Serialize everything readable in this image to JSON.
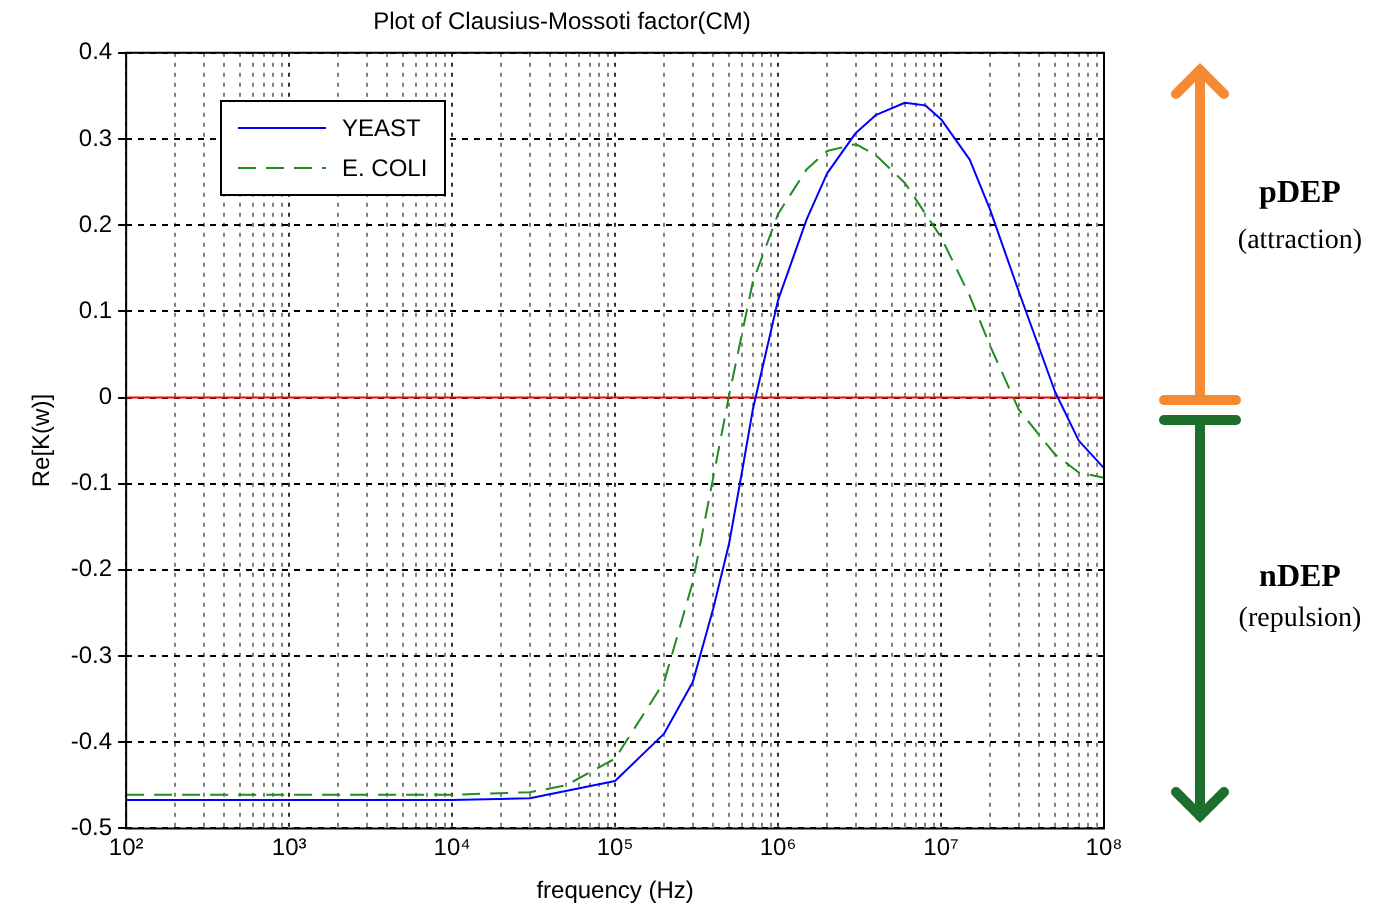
{
  "chart_data": {
    "type": "line",
    "title": "Plot of Clausius-Mossoti factor(CM)",
    "xlabel": "frequency (Hz)",
    "ylabel": "Re[K(w)]",
    "log": "x",
    "grid": true,
    "legend": "top left",
    "marker": "none",
    "xlim": [
      100,
      100000000
    ],
    "xticks": [
      {
        "value": 100,
        "label": "10²"
      },
      {
        "value": 200,
        "label": null
      },
      {
        "value": 300,
        "label": null
      },
      {
        "value": 400,
        "label": null
      },
      {
        "value": 500,
        "label": null
      },
      {
        "value": 600,
        "label": null
      },
      {
        "value": 700,
        "label": null
      },
      {
        "value": 800,
        "label": null
      },
      {
        "value": 900,
        "label": null
      },
      {
        "value": 1000,
        "label": "10³"
      },
      {
        "value": 2000,
        "label": null
      },
      {
        "value": 3000,
        "label": null
      },
      {
        "value": 4000,
        "label": null
      },
      {
        "value": 5000,
        "label": null
      },
      {
        "value": 6000,
        "label": null
      },
      {
        "value": 7000,
        "label": null
      },
      {
        "value": 8000,
        "label": null
      },
      {
        "value": 9000,
        "label": null
      },
      {
        "value": 10000,
        "label": "10⁴"
      },
      {
        "value": 20000,
        "label": null
      },
      {
        "value": 30000,
        "label": null
      },
      {
        "value": 40000,
        "label": null
      },
      {
        "value": 50000,
        "label": null
      },
      {
        "value": 60000,
        "label": null
      },
      {
        "value": 70000,
        "label": null
      },
      {
        "value": 80000,
        "label": null
      },
      {
        "value": 90000,
        "label": null
      },
      {
        "value": 100000,
        "label": "10⁵"
      },
      {
        "value": 200000,
        "label": null
      },
      {
        "value": 300000,
        "label": null
      },
      {
        "value": 400000,
        "label": null
      },
      {
        "value": 500000,
        "label": null
      },
      {
        "value": 600000,
        "label": null
      },
      {
        "value": 700000,
        "label": null
      },
      {
        "value": 800000,
        "label": null
      },
      {
        "value": 900000,
        "label": null
      },
      {
        "value": 1000000,
        "label": "10⁶"
      },
      {
        "value": 2000000,
        "label": null
      },
      {
        "value": 3000000,
        "label": null
      },
      {
        "value": 4000000,
        "label": null
      },
      {
        "value": 5000000,
        "label": null
      },
      {
        "value": 6000000,
        "label": null
      },
      {
        "value": 7000000,
        "label": null
      },
      {
        "value": 8000000,
        "label": null
      },
      {
        "value": 9000000,
        "label": null
      },
      {
        "value": 10000000,
        "label": "10⁷"
      },
      {
        "value": 20000000,
        "label": null
      },
      {
        "value": 30000000,
        "label": null
      },
      {
        "value": 40000000,
        "label": null
      },
      {
        "value": 50000000,
        "label": null
      },
      {
        "value": 60000000,
        "label": null
      },
      {
        "value": 70000000,
        "label": null
      },
      {
        "value": 80000000,
        "label": null
      },
      {
        "value": 90000000,
        "label": null
      },
      {
        "value": 100000000,
        "label": "10⁸"
      }
    ],
    "ylim": [
      -0.5,
      0.4
    ],
    "yticks": [
      -0.5,
      -0.4,
      -0.3,
      -0.2,
      -0.1,
      0,
      0.1,
      0.2,
      0.3,
      0.4
    ],
    "series": [
      {
        "name": "YEAST",
        "color": "#0000ff",
        "line_style": "solid",
        "x": [
          100,
          1000,
          10000,
          30000,
          100000,
          200000,
          300000,
          400000,
          500000,
          600000,
          700000,
          1000000,
          1500000,
          2000000,
          3000000,
          4000000,
          6000000,
          8000000,
          10000000,
          15000000,
          20000000,
          30000000,
          50000000,
          70000000,
          100000000
        ],
        "values": [
          -0.467,
          -0.467,
          -0.467,
          -0.465,
          -0.445,
          -0.39,
          -0.33,
          -0.245,
          -0.17,
          -0.087,
          -0.014,
          0.113,
          0.207,
          0.26,
          0.307,
          0.328,
          0.342,
          0.339,
          0.323,
          0.276,
          0.218,
          0.123,
          0.007,
          -0.05,
          -0.082
        ]
      },
      {
        "name": "E. COLI",
        "color": "#228b22",
        "line_style": "dashed",
        "x": [
          100,
          1000,
          10000,
          30000,
          50000,
          100000,
          200000,
          300000,
          400000,
          500000,
          700000,
          1000000,
          1500000,
          2000000,
          3000000,
          4000000,
          6000000,
          10000000,
          15000000,
          20000000,
          30000000,
          50000000,
          70000000,
          100000000
        ],
        "values": [
          -0.461,
          -0.461,
          -0.461,
          -0.458,
          -0.45,
          -0.419,
          -0.33,
          -0.214,
          -0.093,
          0.002,
          0.134,
          0.213,
          0.265,
          0.286,
          0.294,
          0.281,
          0.249,
          0.186,
          0.118,
          0.06,
          -0.014,
          -0.066,
          -0.087,
          -0.093
        ]
      }
    ],
    "ref_lines": [
      {
        "axis": "y",
        "value": 0,
        "color": "#ff0000"
      }
    ],
    "annotations": [
      "pDEP",
      "(attraction)",
      "nDEP",
      "(repulsion)"
    ]
  }
}
